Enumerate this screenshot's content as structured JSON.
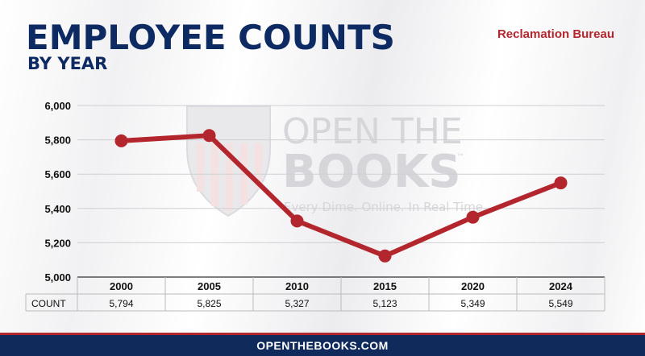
{
  "header": {
    "title": "EMPLOYEE COUNTS",
    "subtitle": "BY YEAR",
    "agency": "Reclamation Bureau"
  },
  "watermark": {
    "line1": "OPEN THE",
    "line2": "BOOKS",
    "tm": "™",
    "tagline": "Every Dime. Online. In Real Time."
  },
  "table": {
    "row_label": "COUNT",
    "value_labels": [
      "5,794",
      "5,825",
      "5,327",
      "5,123",
      "5,349",
      "5,549"
    ]
  },
  "footer": {
    "site": "OPENTHEBOOKS.COM"
  },
  "colors": {
    "line": "#b3262d",
    "title": "#0d2a63",
    "accent": "#b3262d",
    "footer": "#102a5c"
  },
  "chart_data": {
    "type": "line",
    "title": "EMPLOYEE COUNTS",
    "subtitle": "BY YEAR",
    "categories": [
      "2000",
      "2005",
      "2010",
      "2015",
      "2020",
      "2024"
    ],
    "series": [
      {
        "values": [
          5794,
          5825,
          5327,
          5123,
          5349,
          5549
        ]
      }
    ],
    "yticks": [
      "6,000",
      "5,800",
      "5,600",
      "5,400",
      "5,200",
      "5,000"
    ],
    "ytick_values": [
      6000,
      5800,
      5600,
      5400,
      5200,
      5000
    ],
    "ylim": [
      5000,
      6000
    ],
    "grid": true,
    "legend": "none"
  }
}
